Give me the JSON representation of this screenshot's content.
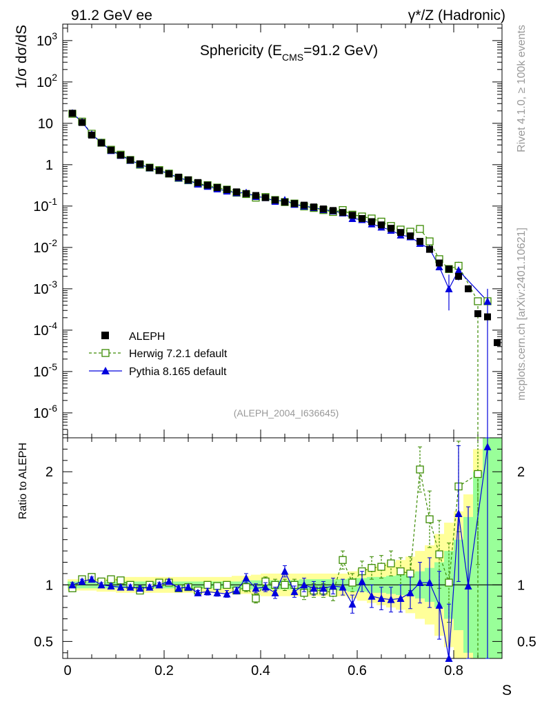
{
  "header": {
    "left": "91.2 GeV ee",
    "right": "γ*/Z (Hadronic)"
  },
  "side_text": {
    "rivet": "Rivet 4.1.0, ≥ 100k events",
    "mcplots": "mcplots.cern.ch [arXiv:2401.10621]"
  },
  "colors": {
    "data": "#000000",
    "herwig": "#3a8a00",
    "pythia": "#0000dd",
    "band_yellow": "#ffff99",
    "band_green": "#99ff99"
  },
  "chart_data": {
    "type": "scatter",
    "title": "Sphericity (E",
    "title_sub": "CMS",
    "title_tail": "=91.2 GeV)",
    "analysis_label": "(ALEPH_2004_I636645)",
    "ylabel_main": "1/σ  dσ/dS",
    "ylabel_ratio": "Ratio to ALEPH",
    "xlabel": "S",
    "xlim": [
      -0.01,
      0.9
    ],
    "ylim_main": [
      2.5e-07,
      2500
    ],
    "ylim_ratio": [
      0.35,
      2.3
    ],
    "x_ticks": [
      "0",
      "0.2",
      "0.4",
      "0.6",
      "0.8"
    ],
    "y_ticks_main": [
      "10",
      "1",
      "10"
    ],
    "y_tick_exps": {
      "-6": "-6",
      "-5": "-5",
      "-4": "-4",
      "-3": "-3",
      "-2": "-2",
      "-1": "-1",
      "2": "2",
      "3": "3"
    },
    "y_ticks_ratio": [
      "0.5",
      "1",
      "2"
    ],
    "legend": [
      "ALEPH",
      "Herwig 7.2.1 default",
      "Pythia 8.165 default"
    ],
    "x": [
      0.01,
      0.03,
      0.05,
      0.07,
      0.09,
      0.11,
      0.13,
      0.15,
      0.17,
      0.19,
      0.21,
      0.23,
      0.25,
      0.27,
      0.29,
      0.31,
      0.33,
      0.35,
      0.37,
      0.39,
      0.41,
      0.43,
      0.45,
      0.47,
      0.49,
      0.51,
      0.53,
      0.55,
      0.57,
      0.59,
      0.61,
      0.63,
      0.65,
      0.67,
      0.69,
      0.71,
      0.73,
      0.75,
      0.77,
      0.79,
      0.81,
      0.83,
      0.85,
      0.87,
      0.89
    ],
    "series": [
      {
        "name": "ALEPH",
        "values": [
          17.5,
          10.5,
          5.2,
          3.35,
          2.25,
          1.7,
          1.3,
          1.05,
          0.85,
          0.72,
          0.6,
          0.5,
          0.43,
          0.37,
          0.32,
          0.28,
          0.25,
          0.22,
          0.2,
          0.18,
          0.16,
          0.14,
          0.125,
          0.115,
          0.105,
          0.095,
          0.085,
          0.078,
          0.07,
          0.06,
          0.05,
          0.042,
          0.035,
          0.029,
          0.023,
          0.019,
          0.014,
          0.009,
          0.0042,
          0.003,
          0.002,
          0.001,
          0.00025,
          0.00021,
          5e-05
        ]
      },
      {
        "name": "Herwig 7.2.1 default",
        "values": [
          17.0,
          11.0,
          5.6,
          3.4,
          2.3,
          1.75,
          1.3,
          1.0,
          0.85,
          0.74,
          0.61,
          0.48,
          0.42,
          0.35,
          0.32,
          0.28,
          0.25,
          0.21,
          0.195,
          0.16,
          0.165,
          0.14,
          0.125,
          0.115,
          0.098,
          0.09,
          0.08,
          0.072,
          0.08,
          0.062,
          0.056,
          0.05,
          0.042,
          0.033,
          0.027,
          0.024,
          0.028,
          0.014,
          0.0052,
          0.003,
          0.0036,
          null,
          0.0005,
          0.0005,
          null
        ]
      },
      {
        "name": "Pythia 8.165 default",
        "values": [
          17.6,
          10.8,
          5.4,
          3.4,
          2.2,
          1.68,
          1.28,
          1.02,
          0.84,
          0.72,
          0.61,
          0.48,
          0.42,
          0.34,
          0.3,
          0.26,
          0.23,
          0.21,
          0.21,
          0.17,
          0.16,
          0.13,
          0.14,
          0.11,
          0.1,
          0.092,
          0.082,
          0.076,
          0.068,
          0.05,
          0.047,
          0.037,
          0.031,
          0.026,
          0.02,
          0.018,
          0.0125,
          0.0093,
          0.0034,
          0.001,
          0.0028,
          null,
          null,
          0.0005,
          null
        ]
      }
    ],
    "ratio_herwig": [
      0.97,
      1.05,
      1.07,
      1.03,
      1.05,
      1.04,
      1.0,
      0.95,
      1.0,
      1.02,
      1.02,
      0.97,
      0.98,
      0.95,
      1.0,
      0.99,
      1.0,
      0.95,
      0.98,
      0.88,
      1.03,
      1.0,
      1.0,
      1.0,
      0.93,
      0.95,
      0.95,
      0.93,
      1.22,
      1.02,
      1.12,
      1.15,
      1.16,
      1.19,
      1.12,
      1.1,
      2.02,
      1.58,
      1.27,
      1.02,
      1.87,
      null,
      1.98,
      null,
      null
    ],
    "ratio_herwig_err": [
      0.02,
      0.02,
      0.02,
      0.02,
      0.02,
      0.02,
      0.02,
      0.02,
      0.02,
      0.02,
      0.02,
      0.02,
      0.02,
      0.02,
      0.03,
      0.03,
      0.03,
      0.03,
      0.04,
      0.04,
      0.04,
      0.05,
      0.05,
      0.05,
      0.06,
      0.06,
      0.06,
      0.07,
      0.08,
      0.08,
      0.09,
      0.1,
      0.1,
      0.11,
      0.12,
      0.15,
      0.2,
      0.25,
      0.3,
      0.35,
      0.4,
      null,
      0.8,
      null,
      null
    ],
    "ratio_pythia": [
      1.0,
      1.03,
      1.05,
      1.0,
      0.99,
      0.98,
      0.98,
      0.97,
      0.98,
      1.0,
      1.03,
      0.97,
      0.98,
      0.93,
      0.94,
      0.93,
      0.92,
      0.95,
      1.06,
      0.97,
      0.98,
      0.93,
      1.12,
      0.94,
      1.0,
      0.97,
      0.97,
      0.99,
      0.98,
      0.83,
      1.03,
      0.9,
      0.88,
      0.87,
      0.88,
      0.93,
      1.02,
      1.02,
      0.82,
      0.33,
      1.63,
      0.99,
      null,
      2.22,
      null
    ],
    "ratio_pythia_err": [
      0.02,
      0.02,
      0.02,
      0.02,
      0.02,
      0.02,
      0.02,
      0.02,
      0.02,
      0.02,
      0.02,
      0.02,
      0.02,
      0.02,
      0.03,
      0.03,
      0.03,
      0.03,
      0.04,
      0.04,
      0.04,
      0.05,
      0.05,
      0.05,
      0.06,
      0.06,
      0.06,
      0.07,
      0.07,
      0.08,
      0.09,
      0.1,
      0.1,
      0.11,
      0.12,
      0.14,
      0.18,
      0.22,
      0.3,
      0.5,
      0.6,
      0.7,
      null,
      2.0,
      null
    ],
    "ratio_band_green": [
      0.03,
      0.03,
      0.03,
      0.03,
      0.03,
      0.03,
      0.03,
      0.03,
      0.03,
      0.03,
      0.03,
      0.03,
      0.03,
      0.03,
      0.03,
      0.03,
      0.03,
      0.03,
      0.04,
      0.04,
      0.04,
      0.04,
      0.04,
      0.04,
      0.05,
      0.05,
      0.05,
      0.05,
      0.05,
      0.06,
      0.06,
      0.07,
      0.07,
      0.08,
      0.09,
      0.1,
      0.12,
      0.15,
      0.2,
      0.3,
      0.4,
      0.6,
      1.0,
      1.5,
      2.0
    ],
    "ratio_band_yellow": [
      0.05,
      0.05,
      0.05,
      0.06,
      0.06,
      0.07,
      0.07,
      0.07,
      0.07,
      0.07,
      0.07,
      0.07,
      0.07,
      0.07,
      0.07,
      0.07,
      0.07,
      0.08,
      0.08,
      0.09,
      0.1,
      0.1,
      0.1,
      0.1,
      0.1,
      0.1,
      0.1,
      0.1,
      0.1,
      0.12,
      0.14,
      0.16,
      0.18,
      0.2,
      0.22,
      0.25,
      0.3,
      0.35,
      0.45,
      0.55,
      0.65,
      0.8,
      1.2,
      1.7,
      2.2
    ]
  }
}
